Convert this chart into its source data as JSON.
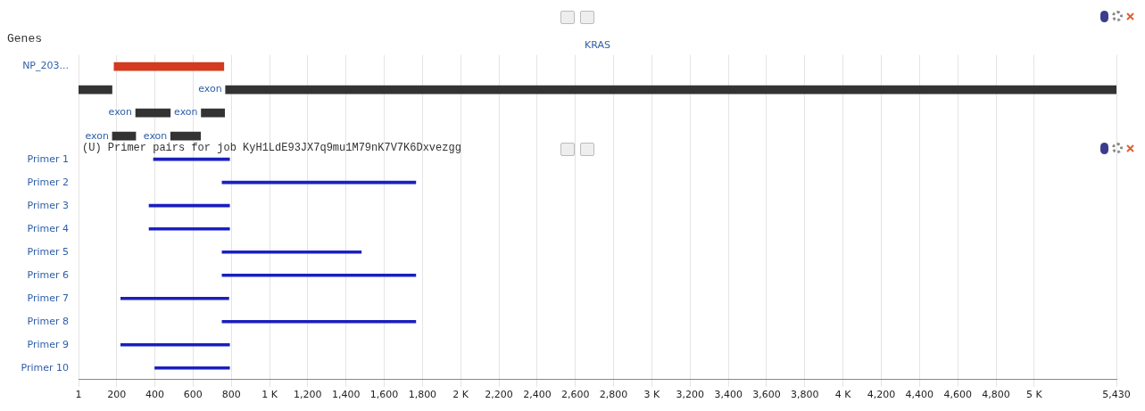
{
  "chart_data": {
    "type": "bar",
    "orientation": "horizontal",
    "title": "Genes",
    "annotations": [
      "KRAS",
      "(U) Primer pairs for job KyH1LdE93JX7q9mu1M79nK7V7K6Dxvezgg"
    ],
    "categories": [
      "NP_203...",
      null,
      null,
      null,
      "Primer 1",
      "Primer 2",
      "Primer 3",
      "Primer 4",
      "Primer 5",
      "Primer 6",
      "Primer 7",
      "Primer 8",
      "Primer 9",
      "Primer 10"
    ],
    "series": [
      {
        "color": "#d33a1f",
        "values": [
          574,
          null,
          null,
          null,
          null,
          null,
          null,
          null,
          null,
          null,
          null,
          null,
          null,
          null
        ],
        "base": [
          187,
          null,
          null,
          null,
          null,
          null,
          null,
          null,
          null,
          null,
          null,
          null,
          null,
          null
        ]
      },
      {
        "color": "#333333",
        "values": [
          null,
          175,
          181,
          122,
          null,
          null,
          null,
          null,
          null,
          null,
          null,
          null,
          null,
          null
        ],
        "base": [
          null,
          1,
          300,
          178,
          null,
          null,
          null,
          null,
          null,
          null,
          null,
          null,
          null,
          null
        ],
        "value_labels": [
          null,
          null,
          "exon",
          "exon",
          null,
          null,
          null,
          null,
          null,
          null,
          null,
          null,
          null,
          null
        ]
      },
      {
        "color": "#333333",
        "values": [
          null,
          4660,
          122,
          156,
          null,
          null,
          null,
          null,
          null,
          null,
          null,
          null,
          null,
          null
        ],
        "base": [
          null,
          770,
          643,
          483,
          null,
          null,
          null,
          null,
          null,
          null,
          null,
          null,
          null,
          null
        ],
        "value_labels": [
          null,
          "exon",
          "exon",
          "exon",
          null,
          null,
          null,
          null,
          null,
          null,
          null,
          null,
          null,
          null
        ]
      },
      {
        "color": "#1a1fbf",
        "values": [
          null,
          null,
          null,
          null,
          398,
          1013,
          421,
          421,
          728,
          1013,
          565,
          1013,
          569,
          391
        ],
        "base": [
          null,
          null,
          null,
          null,
          393,
          752,
          370,
          370,
          752,
          752,
          222,
          752,
          222,
          400
        ]
      }
    ],
    "xlim": [
      1,
      5430
    ],
    "xticks": [
      1,
      200,
      400,
      600,
      800,
      {
        "value": 1000,
        "label": "1 K"
      },
      {
        "value": 1200,
        "label": "1,200"
      },
      {
        "value": 1400,
        "label": "1,400"
      },
      {
        "value": 1600,
        "label": "1,600"
      },
      {
        "value": 1800,
        "label": "1,800"
      },
      {
        "value": 2000,
        "label": "2 K"
      },
      {
        "value": 2200,
        "label": "2,200"
      },
      {
        "value": 2400,
        "label": "2,400"
      },
      {
        "value": 2600,
        "label": "2,600"
      },
      {
        "value": 2800,
        "label": "2,800"
      },
      {
        "value": 3000,
        "label": "3 K"
      },
      {
        "value": 3200,
        "label": "3,200"
      },
      {
        "value": 3400,
        "label": "3,400"
      },
      {
        "value": 3600,
        "label": "3,600"
      },
      {
        "value": 3800,
        "label": "3,800"
      },
      {
        "value": 4000,
        "label": "4 K"
      },
      {
        "value": 4200,
        "label": "4,200"
      },
      {
        "value": 4400,
        "label": "4,400"
      },
      {
        "value": 4600,
        "label": "4,600"
      },
      {
        "value": 4800,
        "label": "4,800"
      },
      {
        "value": 5000,
        "label": "5 K"
      },
      {
        "value": 5430,
        "label": "5,430"
      }
    ],
    "grid": "x",
    "legend": false
  }
}
